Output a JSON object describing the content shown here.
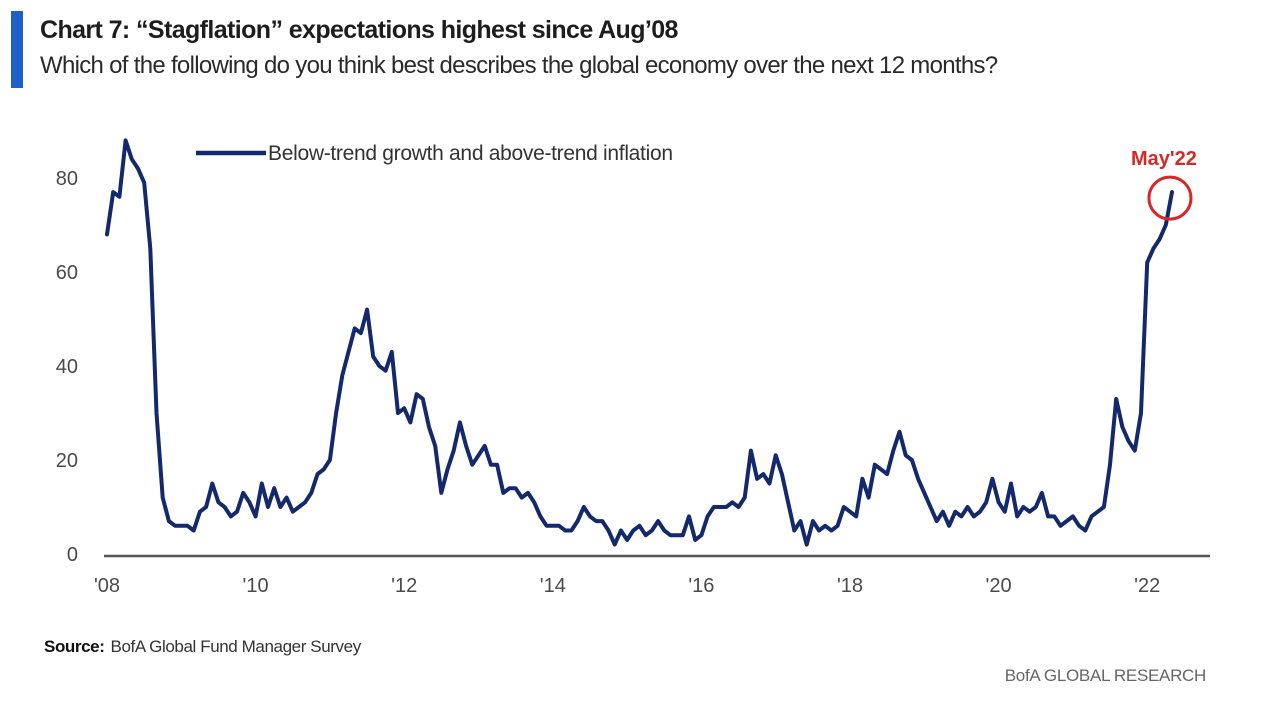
{
  "header": {
    "title": "Chart 7: “Stagflation” expectations highest since Aug’08",
    "subtitle": "Which of the following do you think best describes the global economy over the next 12 months?"
  },
  "footer": {
    "source_label": "Source:",
    "source_text": "BofA Global Fund Manager Survey",
    "credit": "BofA GLOBAL RESEARCH"
  },
  "colors": {
    "accent": "#1f5fc8",
    "series": "#13296b",
    "annotation": "#d62828",
    "axis": "#555555"
  },
  "chart_data": {
    "type": "line",
    "title": "Chart 7: “Stagflation” expectations highest since Aug’08",
    "subtitle": "Which of the following do you think best describes the global economy over the next 12 months?",
    "xlabel": "",
    "ylabel": "",
    "x_start": "2008-01",
    "x_frequency": "monthly",
    "xlim": [
      2008,
      2023
    ],
    "ylim": [
      0,
      90
    ],
    "y_ticks": [
      0,
      20,
      40,
      60,
      80
    ],
    "y_tick_labels": [
      "0",
      "20",
      "40",
      "60",
      "80"
    ],
    "x_ticks": [
      2008,
      2010,
      2012,
      2014,
      2016,
      2018,
      2020,
      2022
    ],
    "x_tick_labels": [
      "'08",
      "'10",
      "'12",
      "'14",
      "'16",
      "'18",
      "'20",
      "'22"
    ],
    "grid": false,
    "legend": {
      "placement": "top-center",
      "entries": [
        "Below-trend growth and above-trend inflation"
      ]
    },
    "annotations": [
      {
        "text": "May'22",
        "x": "2022-05",
        "y": 77,
        "marker": "circle"
      }
    ],
    "series": [
      {
        "name": "Below-trend growth and above-trend inflation",
        "values": [
          68,
          77,
          76,
          88,
          84,
          82,
          79,
          65,
          30,
          12,
          7,
          6,
          6,
          6,
          5,
          9,
          10,
          15,
          11,
          10,
          8,
          9,
          13,
          11,
          8,
          15,
          10,
          14,
          10,
          12,
          9,
          10,
          11,
          13,
          17,
          18,
          20,
          30,
          38,
          43,
          48,
          47,
          52,
          42,
          40,
          39,
          43,
          30,
          31,
          28,
          34,
          33,
          27,
          23,
          13,
          18,
          22,
          28,
          23,
          19,
          21,
          23,
          19,
          19,
          13,
          14,
          14,
          12,
          13,
          11,
          8,
          6,
          6,
          6,
          5,
          5,
          7,
          10,
          8,
          7,
          7,
          5,
          2,
          5,
          3,
          5,
          6,
          4,
          5,
          7,
          5,
          4,
          4,
          4,
          8,
          3,
          4,
          8,
          10,
          10,
          10,
          11,
          10,
          12,
          22,
          16,
          17,
          15,
          21,
          17,
          11,
          5,
          7,
          2,
          7,
          5,
          6,
          5,
          6,
          10,
          9,
          8,
          16,
          12,
          19,
          18,
          17,
          22,
          26,
          21,
          20,
          16,
          13,
          10,
          7,
          9,
          6,
          9,
          8,
          10,
          8,
          9,
          11,
          16,
          11,
          9,
          15,
          8,
          10,
          9,
          10,
          13,
          8,
          8,
          6,
          7,
          8,
          6,
          5,
          8,
          9,
          10,
          19,
          33,
          27,
          24,
          22,
          30,
          62,
          65,
          67,
          70,
          77
        ]
      }
    ]
  }
}
